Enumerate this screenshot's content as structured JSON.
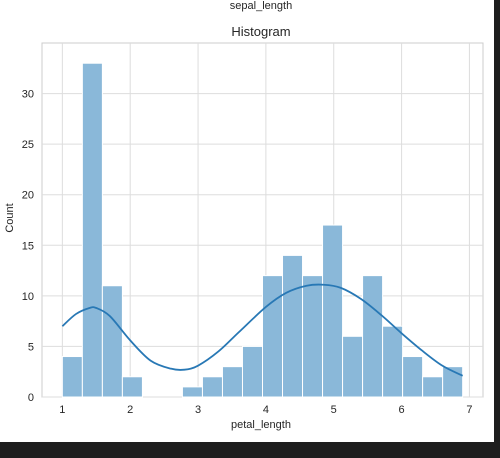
{
  "figure": {
    "suptitle": "sepal_length"
  },
  "chart_data": {
    "type": "bar",
    "title": "Histogram",
    "xlabel": "petal_length",
    "ylabel": "Count",
    "xlim": [
      0.7,
      7.2
    ],
    "ylim": [
      0,
      35
    ],
    "xticks": [
      1,
      2,
      3,
      4,
      5,
      6,
      7
    ],
    "yticks": [
      0,
      5,
      10,
      15,
      20,
      25,
      30
    ],
    "grid": true,
    "bin_width": 0.295,
    "bin_start": 1.0,
    "values": [
      4,
      33,
      11,
      2,
      0,
      0,
      1,
      2,
      3,
      5,
      12,
      14,
      12,
      17,
      6,
      12,
      7,
      4,
      2,
      3
    ],
    "bar_color": "#8ab8d9",
    "kde": {
      "color": "#2878b5",
      "x": [
        1.0,
        1.2,
        1.4,
        1.5,
        1.7,
        2.0,
        2.3,
        2.6,
        2.8,
        3.0,
        3.3,
        3.6,
        4.0,
        4.3,
        4.6,
        4.85,
        5.1,
        5.4,
        5.7,
        6.0,
        6.3,
        6.6,
        6.9
      ],
      "y": [
        7.0,
        8.2,
        8.8,
        8.8,
        8.0,
        5.6,
        3.6,
        2.8,
        2.7,
        3.1,
        4.5,
        6.4,
        8.9,
        10.3,
        11.0,
        11.1,
        10.8,
        9.7,
        8.1,
        6.3,
        4.6,
        3.1,
        2.1
      ]
    }
  }
}
